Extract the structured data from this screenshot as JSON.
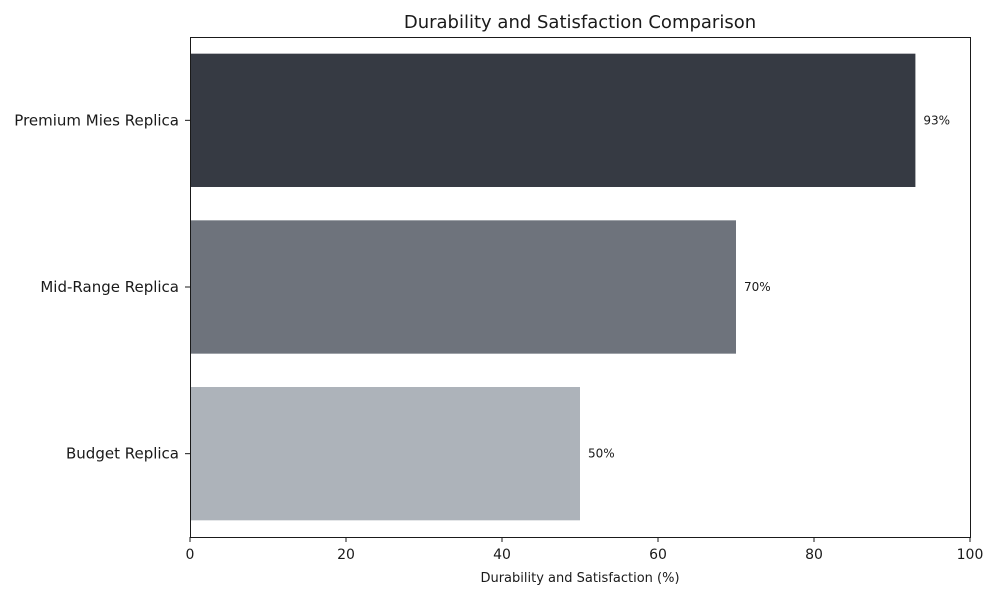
{
  "chart_data": {
    "type": "bar",
    "orientation": "horizontal",
    "title": "Durability and Satisfaction Comparison",
    "xlabel": "Durability and Satisfaction (%)",
    "ylabel": "",
    "categories": [
      "Premium Mies Replica",
      "Mid-Range Replica",
      "Budget Replica"
    ],
    "values": [
      93,
      70,
      50
    ],
    "value_labels": [
      "93%",
      "70%",
      "50%"
    ],
    "colors": [
      "#363a43",
      "#6e737c",
      "#adb3ba"
    ],
    "xlim": [
      0,
      100
    ],
    "xticks": [
      0,
      20,
      40,
      60,
      80,
      100
    ],
    "grid": false,
    "legend": "none"
  }
}
